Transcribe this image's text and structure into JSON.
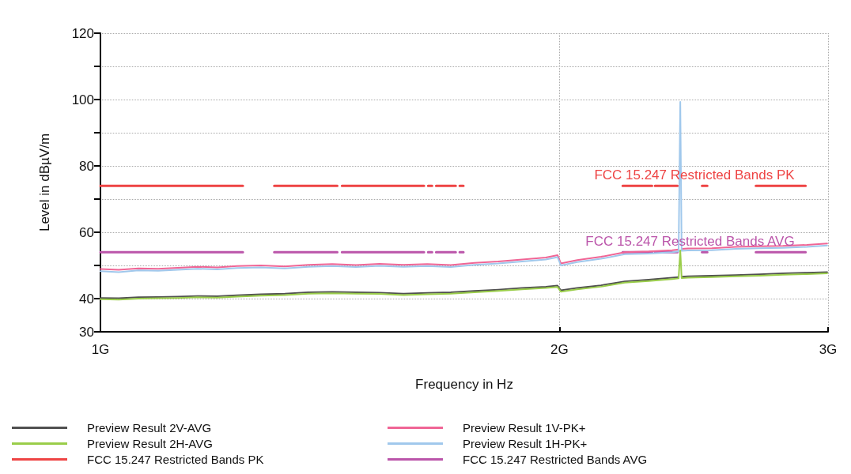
{
  "chart_data": {
    "type": "line",
    "xlabel": "Frequency in Hz",
    "ylabel": "Level in dBµV/m",
    "log": "x",
    "grid": true,
    "legend": "bottom",
    "marker": "none",
    "line_style": "solid",
    "xlim": [
      1,
      3
    ],
    "xticks": [
      {
        "value": 1,
        "label": "1G"
      },
      {
        "value": 2,
        "label": "2G"
      },
      {
        "value": 3,
        "label": "3G"
      }
    ],
    "ylim": [
      30,
      120
    ],
    "yticks": [
      30,
      40,
      {
        "value": 50,
        "label": null
      },
      60,
      {
        "value": 70,
        "label": null
      },
      80,
      {
        "value": 90,
        "label": null
      },
      100,
      {
        "value": 110,
        "label": null
      },
      120
    ],
    "x": [
      1.0,
      1.028,
      1.059,
      1.091,
      1.124,
      1.158,
      1.193,
      1.229,
      1.274,
      1.321,
      1.369,
      1.419,
      1.471,
      1.524,
      1.58,
      1.638,
      1.697,
      1.759,
      1.823,
      1.89,
      1.959,
      1.994,
      2.004,
      2.054,
      2.129,
      2.207,
      2.288,
      2.371,
      2.394,
      2.4,
      2.405,
      2.428,
      2.517,
      2.609,
      2.704,
      2.802,
      2.905,
      2.996
    ],
    "annotations": [
      "FCC 15.247 Restricted Bands PK",
      "FCC 15.247 Restricted Bands AVG"
    ],
    "series": [
      {
        "name": "FCC 15.247 Restricted Bands PK",
        "color": "#ee4444",
        "x": [
          1.0,
          1.24,
          null,
          1.3,
          1.43,
          null,
          1.44,
          1.63,
          null,
          1.64,
          1.65,
          null,
          1.66,
          1.71,
          null,
          1.72,
          1.73,
          null,
          2.2,
          2.3,
          null,
          2.31,
          2.39,
          null,
          2.48,
          2.5,
          null,
          2.69,
          2.9
        ],
        "values": [
          74,
          74,
          null,
          74,
          74,
          null,
          74,
          74,
          null,
          74,
          74,
          null,
          74,
          74,
          null,
          74,
          74,
          null,
          74,
          74,
          null,
          74,
          74,
          null,
          74,
          74,
          null,
          74,
          74
        ]
      },
      {
        "name": "FCC 15.247 Restricted Bands AVG",
        "color": "#bb55aa",
        "x": [
          1.0,
          1.24,
          null,
          1.3,
          1.43,
          null,
          1.44,
          1.63,
          null,
          1.64,
          1.65,
          null,
          1.66,
          1.71,
          null,
          1.72,
          1.73,
          null,
          2.2,
          2.3,
          null,
          2.31,
          2.39,
          null,
          2.48,
          2.5,
          null,
          2.69,
          2.9
        ],
        "values": [
          54,
          54,
          null,
          54,
          54,
          null,
          54,
          54,
          null,
          54,
          54,
          null,
          54,
          54,
          null,
          54,
          54,
          null,
          54,
          54,
          null,
          54,
          54,
          null,
          54,
          54,
          null,
          54,
          54
        ]
      },
      {
        "name": "Preview Result 1V-PK+",
        "color": "#f06595",
        "values": [
          48.9,
          48.7,
          49.1,
          49.0,
          49.3,
          49.6,
          49.4,
          49.8,
          50.0,
          49.7,
          50.2,
          50.4,
          50.1,
          50.5,
          50.2,
          50.4,
          50.1,
          50.8,
          51.2,
          51.8,
          52.4,
          53.1,
          50.6,
          51.6,
          52.6,
          54.0,
          54.2,
          54.6,
          54.8,
          null,
          55.0,
          55.1,
          55.2,
          55.6,
          55.8,
          55.9,
          56.2,
          56.6
        ]
      },
      {
        "name": "Preview Result 1H-PK+",
        "color": "#a0c8ec",
        "values": [
          48.3,
          48.0,
          48.5,
          48.4,
          48.7,
          49.0,
          48.8,
          49.2,
          49.4,
          49.1,
          49.6,
          49.8,
          49.5,
          49.9,
          49.6,
          49.8,
          49.5,
          50.2,
          50.6,
          51.2,
          51.8,
          52.5,
          50.0,
          51.0,
          52.0,
          53.4,
          53.6,
          54.0,
          54.2,
          99.3,
          54.4,
          54.5,
          54.6,
          55.0,
          55.2,
          55.3,
          55.6,
          56.0
        ]
      },
      {
        "name": "Preview Result 2V-AVG",
        "color": "#505050",
        "values": [
          40.2,
          40.1,
          40.4,
          40.5,
          40.6,
          40.8,
          40.7,
          41.0,
          41.3,
          41.5,
          41.9,
          42.0,
          41.9,
          41.8,
          41.5,
          41.7,
          41.9,
          42.3,
          42.7,
          43.2,
          43.6,
          43.9,
          42.5,
          43.2,
          44.0,
          45.2,
          45.7,
          46.3,
          46.5,
          null,
          46.6,
          46.7,
          46.9,
          47.1,
          47.3,
          47.6,
          47.8,
          48.0
        ]
      },
      {
        "name": "Preview Result 2H-AVG",
        "color": "#9acd4a",
        "values": [
          39.8,
          39.7,
          40.0,
          40.1,
          40.2,
          40.4,
          40.3,
          40.6,
          40.9,
          41.1,
          41.5,
          41.6,
          41.5,
          41.4,
          41.1,
          41.3,
          41.5,
          41.9,
          42.3,
          42.8,
          43.2,
          43.5,
          42.1,
          42.8,
          43.6,
          44.8,
          45.3,
          45.9,
          46.1,
          54.5,
          46.2,
          46.3,
          46.5,
          46.7,
          46.9,
          47.2,
          47.4,
          47.6
        ]
      }
    ]
  }
}
